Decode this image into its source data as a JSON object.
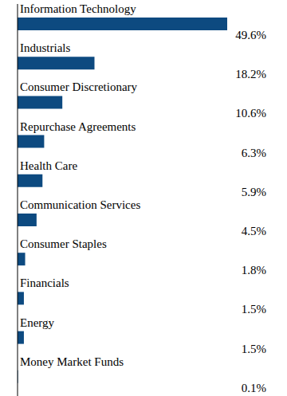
{
  "chart_data": {
    "type": "bar",
    "orientation": "horizontal",
    "categories": [
      "Information Technology",
      "Industrials",
      "Consumer Discretionary",
      "Repurchase Agreements",
      "Health Care",
      "Communication Services",
      "Consumer Staples",
      "Financials",
      "Energy",
      "Money Market Funds"
    ],
    "values": [
      49.6,
      18.2,
      10.6,
      6.3,
      5.9,
      4.5,
      1.8,
      1.5,
      1.5,
      0.1
    ],
    "value_labels": [
      "49.6%",
      "18.2%",
      "10.6%",
      "6.3%",
      "5.9%",
      "4.5%",
      "1.8%",
      "1.5%",
      "1.5%",
      "0.1%"
    ],
    "color": "#0d4a80",
    "data_labels": true,
    "tick_labels": false,
    "grid": false
  }
}
